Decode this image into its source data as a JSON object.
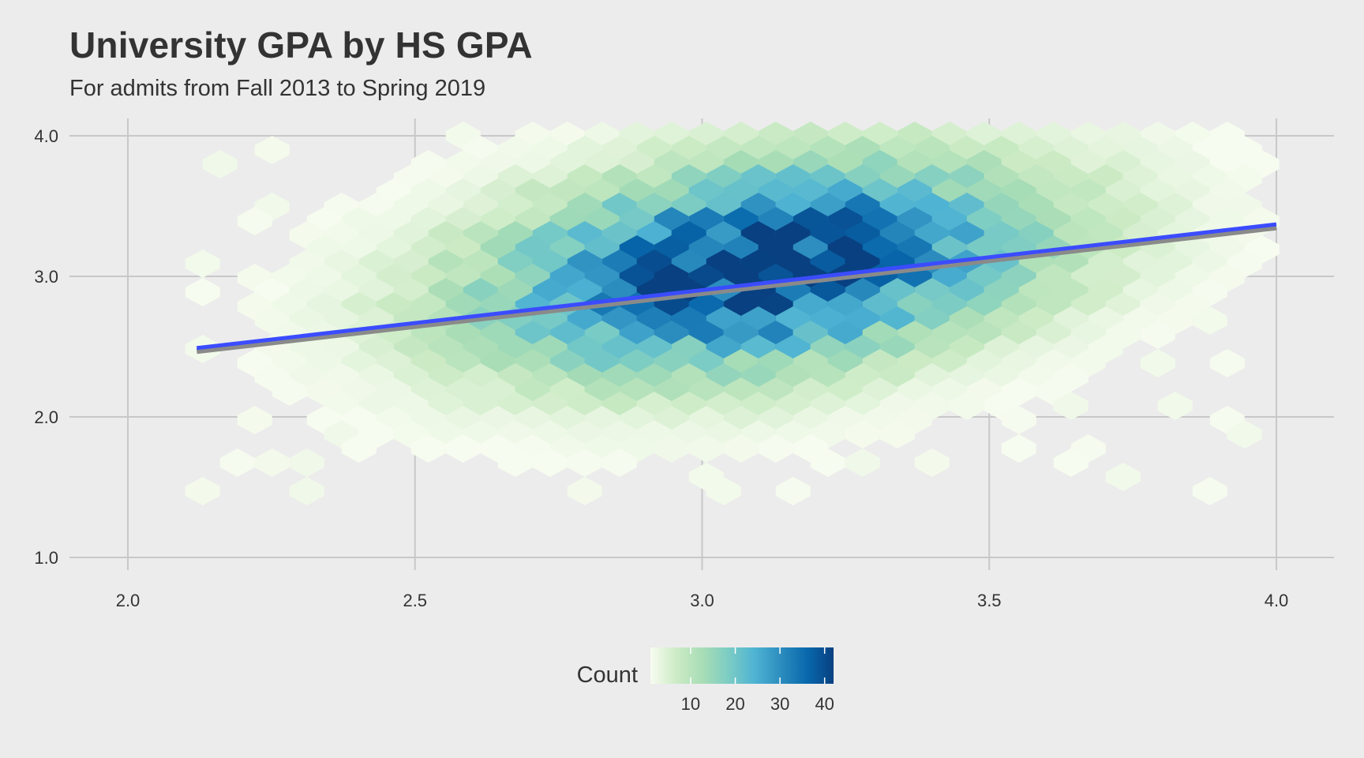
{
  "chart_data": {
    "type": "hexbin",
    "title": "University GPA by HS GPA",
    "subtitle": "For admits from Fall 2013 to Spring 2019",
    "xlabel": "",
    "ylabel": "",
    "xlim": [
      1.9,
      4.1
    ],
    "ylim": [
      0.9,
      4.1
    ],
    "x_ticks": [
      2.0,
      2.5,
      3.0,
      3.5,
      4.0
    ],
    "x_tick_labels": [
      "2.0",
      "2.5",
      "3.0",
      "3.5",
      "4.0"
    ],
    "y_ticks": [
      1.0,
      2.0,
      3.0,
      4.0
    ],
    "y_tick_labels": [
      "1.0",
      "2.0",
      "3.0",
      "4.0"
    ],
    "grid": true,
    "hexbin_density": {
      "center_hs_gpa": 3.1,
      "center_univ_gpa": 3.0,
      "peak_count": 42,
      "hs_gpa_range": [
        2.1,
        4.0
      ],
      "univ_gpa_range": [
        1.4,
        4.0
      ]
    },
    "trend_line": {
      "method": "linear fit",
      "color": "#3b4cff",
      "x": [
        2.12,
        4.0
      ],
      "y": [
        2.49,
        3.37
      ]
    },
    "legend": {
      "title": "Count",
      "placement": "bottom",
      "ticks": [
        10,
        20,
        30,
        40
      ],
      "range": [
        1,
        42
      ],
      "colors": [
        "#f7fcf0",
        "#ccebc5",
        "#a8ddb5",
        "#7bccc4",
        "#4eb3d3",
        "#2b8cbe",
        "#0868ac",
        "#084081"
      ]
    }
  }
}
